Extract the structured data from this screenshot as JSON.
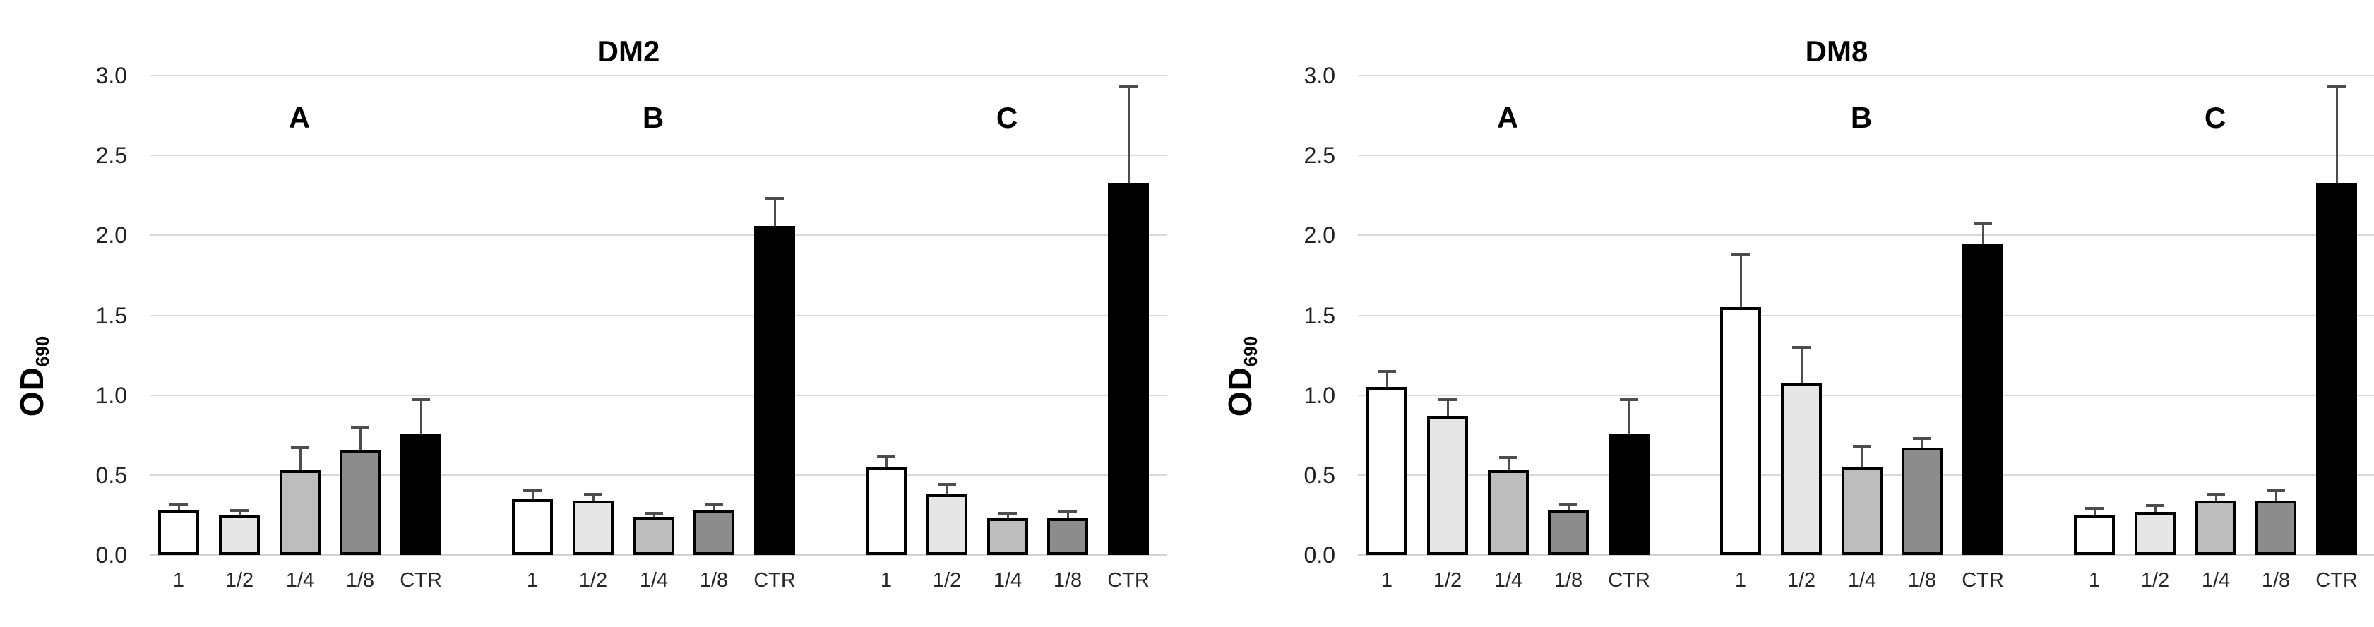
{
  "figure": {
    "background_color": "#ffffff",
    "ylabel_main": "OD",
    "ylabel_sub": "690",
    "y_ticks": [
      "3.0",
      "2.5",
      "2.0",
      "1.5",
      "1.0",
      "0.5",
      "0.0"
    ],
    "categories": [
      "1",
      "1/2",
      "1/4",
      "1/8",
      "CTR"
    ],
    "group_labels": [
      "A",
      "B",
      "C"
    ],
    "bar_colors": [
      "#ffffff",
      "#e6e6e6",
      "#bdbdbd",
      "#8c8c8c",
      "#000000"
    ],
    "bar_border_color": "#000000",
    "error_bar_color": "#4d4d4d",
    "gridline_color": "#d9d9d9"
  },
  "chart_data": [
    {
      "type": "bar",
      "title": "DM2",
      "xlabel": "",
      "ylabel": "OD690",
      "ylim": [
        0,
        3.0
      ],
      "y_tick_step": 0.5,
      "grid": true,
      "legend": "none",
      "categories": [
        "1",
        "1/2",
        "1/4",
        "1/8",
        "CTR"
      ],
      "groups": [
        {
          "label": "A",
          "values": [
            0.28,
            0.25,
            0.53,
            0.66,
            0.76
          ],
          "errors": [
            0.04,
            0.03,
            0.14,
            0.14,
            0.21
          ]
        },
        {
          "label": "B",
          "values": [
            0.35,
            0.34,
            0.24,
            0.28,
            2.06
          ],
          "errors": [
            0.05,
            0.04,
            0.02,
            0.04,
            0.17
          ]
        },
        {
          "label": "C",
          "values": [
            0.55,
            0.38,
            0.23,
            0.23,
            2.33
          ],
          "errors": [
            0.07,
            0.06,
            0.03,
            0.04,
            0.6
          ]
        }
      ]
    },
    {
      "type": "bar",
      "title": "DM8",
      "xlabel": "",
      "ylabel": "OD690",
      "ylim": [
        0,
        3.0
      ],
      "y_tick_step": 0.5,
      "grid": true,
      "legend": "none",
      "categories": [
        "1",
        "1/2",
        "1/4",
        "1/8",
        "CTR"
      ],
      "groups": [
        {
          "label": "A",
          "values": [
            1.05,
            0.87,
            0.53,
            0.28,
            0.76
          ],
          "errors": [
            0.1,
            0.1,
            0.08,
            0.04,
            0.21
          ]
        },
        {
          "label": "B",
          "values": [
            1.55,
            1.08,
            0.55,
            0.67,
            1.95
          ],
          "errors": [
            0.33,
            0.22,
            0.13,
            0.06,
            0.12
          ]
        },
        {
          "label": "C",
          "values": [
            0.25,
            0.27,
            0.34,
            0.34,
            2.33
          ],
          "errors": [
            0.04,
            0.04,
            0.04,
            0.06,
            0.6
          ]
        }
      ]
    }
  ]
}
